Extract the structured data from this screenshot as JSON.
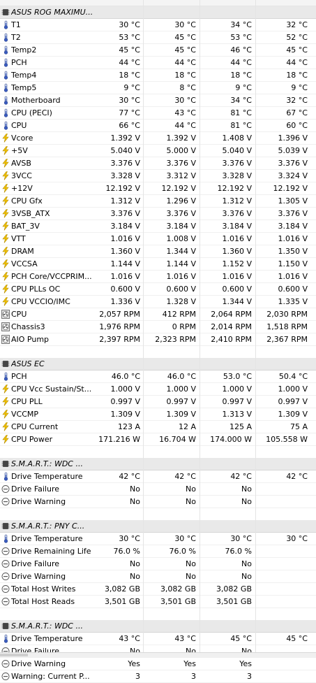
{
  "sections": [
    {
      "title": "ASUS ROG MAXIMU...",
      "rows": [
        {
          "icon": "thermometer-icon",
          "label": "T1",
          "values": [
            "30 °C",
            "30 °C",
            "34 °C",
            "32 °C"
          ]
        },
        {
          "icon": "thermometer-icon",
          "label": "T2",
          "values": [
            "53 °C",
            "45 °C",
            "53 °C",
            "52 °C"
          ]
        },
        {
          "icon": "thermometer-icon",
          "label": "Temp2",
          "values": [
            "45 °C",
            "45 °C",
            "46 °C",
            "45 °C"
          ]
        },
        {
          "icon": "thermometer-icon",
          "label": "PCH",
          "values": [
            "44 °C",
            "44 °C",
            "44 °C",
            "44 °C"
          ]
        },
        {
          "icon": "thermometer-icon",
          "label": "Temp4",
          "values": [
            "18 °C",
            "18 °C",
            "18 °C",
            "18 °C"
          ]
        },
        {
          "icon": "thermometer-icon",
          "label": "Temp5",
          "values": [
            "9 °C",
            "8 °C",
            "9 °C",
            "9 °C"
          ]
        },
        {
          "icon": "thermometer-icon",
          "label": "Motherboard",
          "values": [
            "30 °C",
            "30 °C",
            "34 °C",
            "32 °C"
          ]
        },
        {
          "icon": "thermometer-icon",
          "label": "CPU (PECI)",
          "values": [
            "77 °C",
            "43 °C",
            "81 °C",
            "67 °C"
          ]
        },
        {
          "icon": "thermometer-icon",
          "label": "CPU",
          "values": [
            "66 °C",
            "44 °C",
            "81 °C",
            "60 °C"
          ]
        },
        {
          "icon": "lightning-icon",
          "label": "Vcore",
          "values": [
            "1.392 V",
            "1.392 V",
            "1.408 V",
            "1.396 V"
          ]
        },
        {
          "icon": "lightning-icon",
          "label": "+5V",
          "values": [
            "5.040 V",
            "5.000 V",
            "5.040 V",
            "5.039 V"
          ]
        },
        {
          "icon": "lightning-icon",
          "label": "AVSB",
          "values": [
            "3.376 V",
            "3.376 V",
            "3.376 V",
            "3.376 V"
          ]
        },
        {
          "icon": "lightning-icon",
          "label": "3VCC",
          "values": [
            "3.328 V",
            "3.312 V",
            "3.328 V",
            "3.324 V"
          ]
        },
        {
          "icon": "lightning-icon",
          "label": "+12V",
          "values": [
            "12.192 V",
            "12.192 V",
            "12.192 V",
            "12.192 V"
          ]
        },
        {
          "icon": "lightning-icon",
          "label": "CPU Gfx",
          "values": [
            "1.312 V",
            "1.296 V",
            "1.312 V",
            "1.305 V"
          ]
        },
        {
          "icon": "lightning-icon",
          "label": "3VSB_ATX",
          "values": [
            "3.376 V",
            "3.376 V",
            "3.376 V",
            "3.376 V"
          ]
        },
        {
          "icon": "lightning-icon",
          "label": "BAT_3V",
          "values": [
            "3.184 V",
            "3.184 V",
            "3.184 V",
            "3.184 V"
          ]
        },
        {
          "icon": "lightning-icon",
          "label": "VTT",
          "values": [
            "1.016 V",
            "1.008 V",
            "1.016 V",
            "1.016 V"
          ]
        },
        {
          "icon": "lightning-icon",
          "label": "DRAM",
          "values": [
            "1.360 V",
            "1.344 V",
            "1.360 V",
            "1.350 V"
          ]
        },
        {
          "icon": "lightning-icon",
          "label": "VCCSA",
          "values": [
            "1.144 V",
            "1.144 V",
            "1.152 V",
            "1.150 V"
          ]
        },
        {
          "icon": "lightning-icon",
          "label": "PCH Core/VCCPRIM...",
          "values": [
            "1.016 V",
            "1.016 V",
            "1.016 V",
            "1.016 V"
          ]
        },
        {
          "icon": "lightning-icon",
          "label": "CPU PLLs OC",
          "values": [
            "0.600 V",
            "0.600 V",
            "0.600 V",
            "0.600 V"
          ]
        },
        {
          "icon": "lightning-icon",
          "label": "CPU VCCIO/IMC",
          "values": [
            "1.336 V",
            "1.328 V",
            "1.344 V",
            "1.335 V"
          ]
        },
        {
          "icon": "fan-icon",
          "label": "CPU",
          "values": [
            "2,057 RPM",
            "412 RPM",
            "2,064 RPM",
            "2,030 RPM"
          ]
        },
        {
          "icon": "fan-icon",
          "label": "Chassis3",
          "values": [
            "1,976 RPM",
            "0 RPM",
            "2,014 RPM",
            "1,518 RPM"
          ]
        },
        {
          "icon": "fan-icon",
          "label": "AIO Pump",
          "values": [
            "2,397 RPM",
            "2,323 RPM",
            "2,410 RPM",
            "2,367 RPM"
          ]
        }
      ]
    },
    {
      "title": "ASUS EC",
      "rows": [
        {
          "icon": "thermometer-icon",
          "label": "PCH",
          "values": [
            "46.0 °C",
            "46.0 °C",
            "53.0 °C",
            "50.4 °C"
          ]
        },
        {
          "icon": "lightning-icon",
          "label": "CPU Vcc Sustain/St...",
          "values": [
            "1.000 V",
            "1.000 V",
            "1.000 V",
            "1.000 V"
          ]
        },
        {
          "icon": "lightning-icon",
          "label": "CPU PLL",
          "values": [
            "0.997 V",
            "0.997 V",
            "0.997 V",
            "0.997 V"
          ]
        },
        {
          "icon": "lightning-icon",
          "label": "VCCMP",
          "values": [
            "1.309 V",
            "1.309 V",
            "1.313 V",
            "1.309 V"
          ]
        },
        {
          "icon": "lightning-icon",
          "label": "CPU Current",
          "values": [
            "123 A",
            "12 A",
            "125 A",
            "75 A"
          ]
        },
        {
          "icon": "lightning-icon",
          "label": "CPU Power",
          "values": [
            "171.216 W",
            "16.704 W",
            "174.000 W",
            "105.558 W"
          ]
        }
      ]
    },
    {
      "title": "S.M.A.R.T.: WDC ...",
      "rows": [
        {
          "icon": "thermometer-icon",
          "label": "Drive Temperature",
          "values": [
            "42 °C",
            "42 °C",
            "42 °C",
            "42 °C"
          ]
        },
        {
          "icon": "status-circle-icon",
          "label": "Drive Failure",
          "values": [
            "No",
            "No",
            "No",
            ""
          ]
        },
        {
          "icon": "status-circle-icon",
          "label": "Drive Warning",
          "values": [
            "No",
            "No",
            "No",
            ""
          ]
        }
      ]
    },
    {
      "title": "S.M.A.R.T.: PNY C...",
      "rows": [
        {
          "icon": "thermometer-icon",
          "label": "Drive Temperature",
          "values": [
            "30 °C",
            "30 °C",
            "30 °C",
            "30 °C"
          ]
        },
        {
          "icon": "status-circle-icon",
          "label": "Drive Remaining Life",
          "values": [
            "76.0 %",
            "76.0 %",
            "76.0 %",
            ""
          ]
        },
        {
          "icon": "status-circle-icon",
          "label": "Drive Failure",
          "values": [
            "No",
            "No",
            "No",
            ""
          ]
        },
        {
          "icon": "status-circle-icon",
          "label": "Drive Warning",
          "values": [
            "No",
            "No",
            "No",
            ""
          ]
        },
        {
          "icon": "status-circle-icon",
          "label": "Total Host Writes",
          "values": [
            "3,082 GB",
            "3,082 GB",
            "3,082 GB",
            ""
          ]
        },
        {
          "icon": "status-circle-icon",
          "label": "Total Host Reads",
          "values": [
            "3,501 GB",
            "3,501 GB",
            "3,501 GB",
            ""
          ]
        }
      ]
    },
    {
      "title": "S.M.A.R.T.: WDC ...",
      "rows": [
        {
          "icon": "thermometer-icon",
          "label": "Drive Temperature",
          "values": [
            "43 °C",
            "43 °C",
            "45 °C",
            "45 °C"
          ]
        },
        {
          "icon": "status-circle-icon",
          "label": "Drive Failure",
          "values": [
            "No",
            "No",
            "No",
            ""
          ]
        },
        {
          "icon": "status-circle-icon",
          "label": "Drive Warning",
          "values": [
            "Yes",
            "Yes",
            "Yes",
            ""
          ]
        },
        {
          "icon": "status-circle-icon",
          "label": "Warning: Current P...",
          "values": [
            "3",
            "3",
            "3",
            ""
          ]
        }
      ]
    }
  ]
}
